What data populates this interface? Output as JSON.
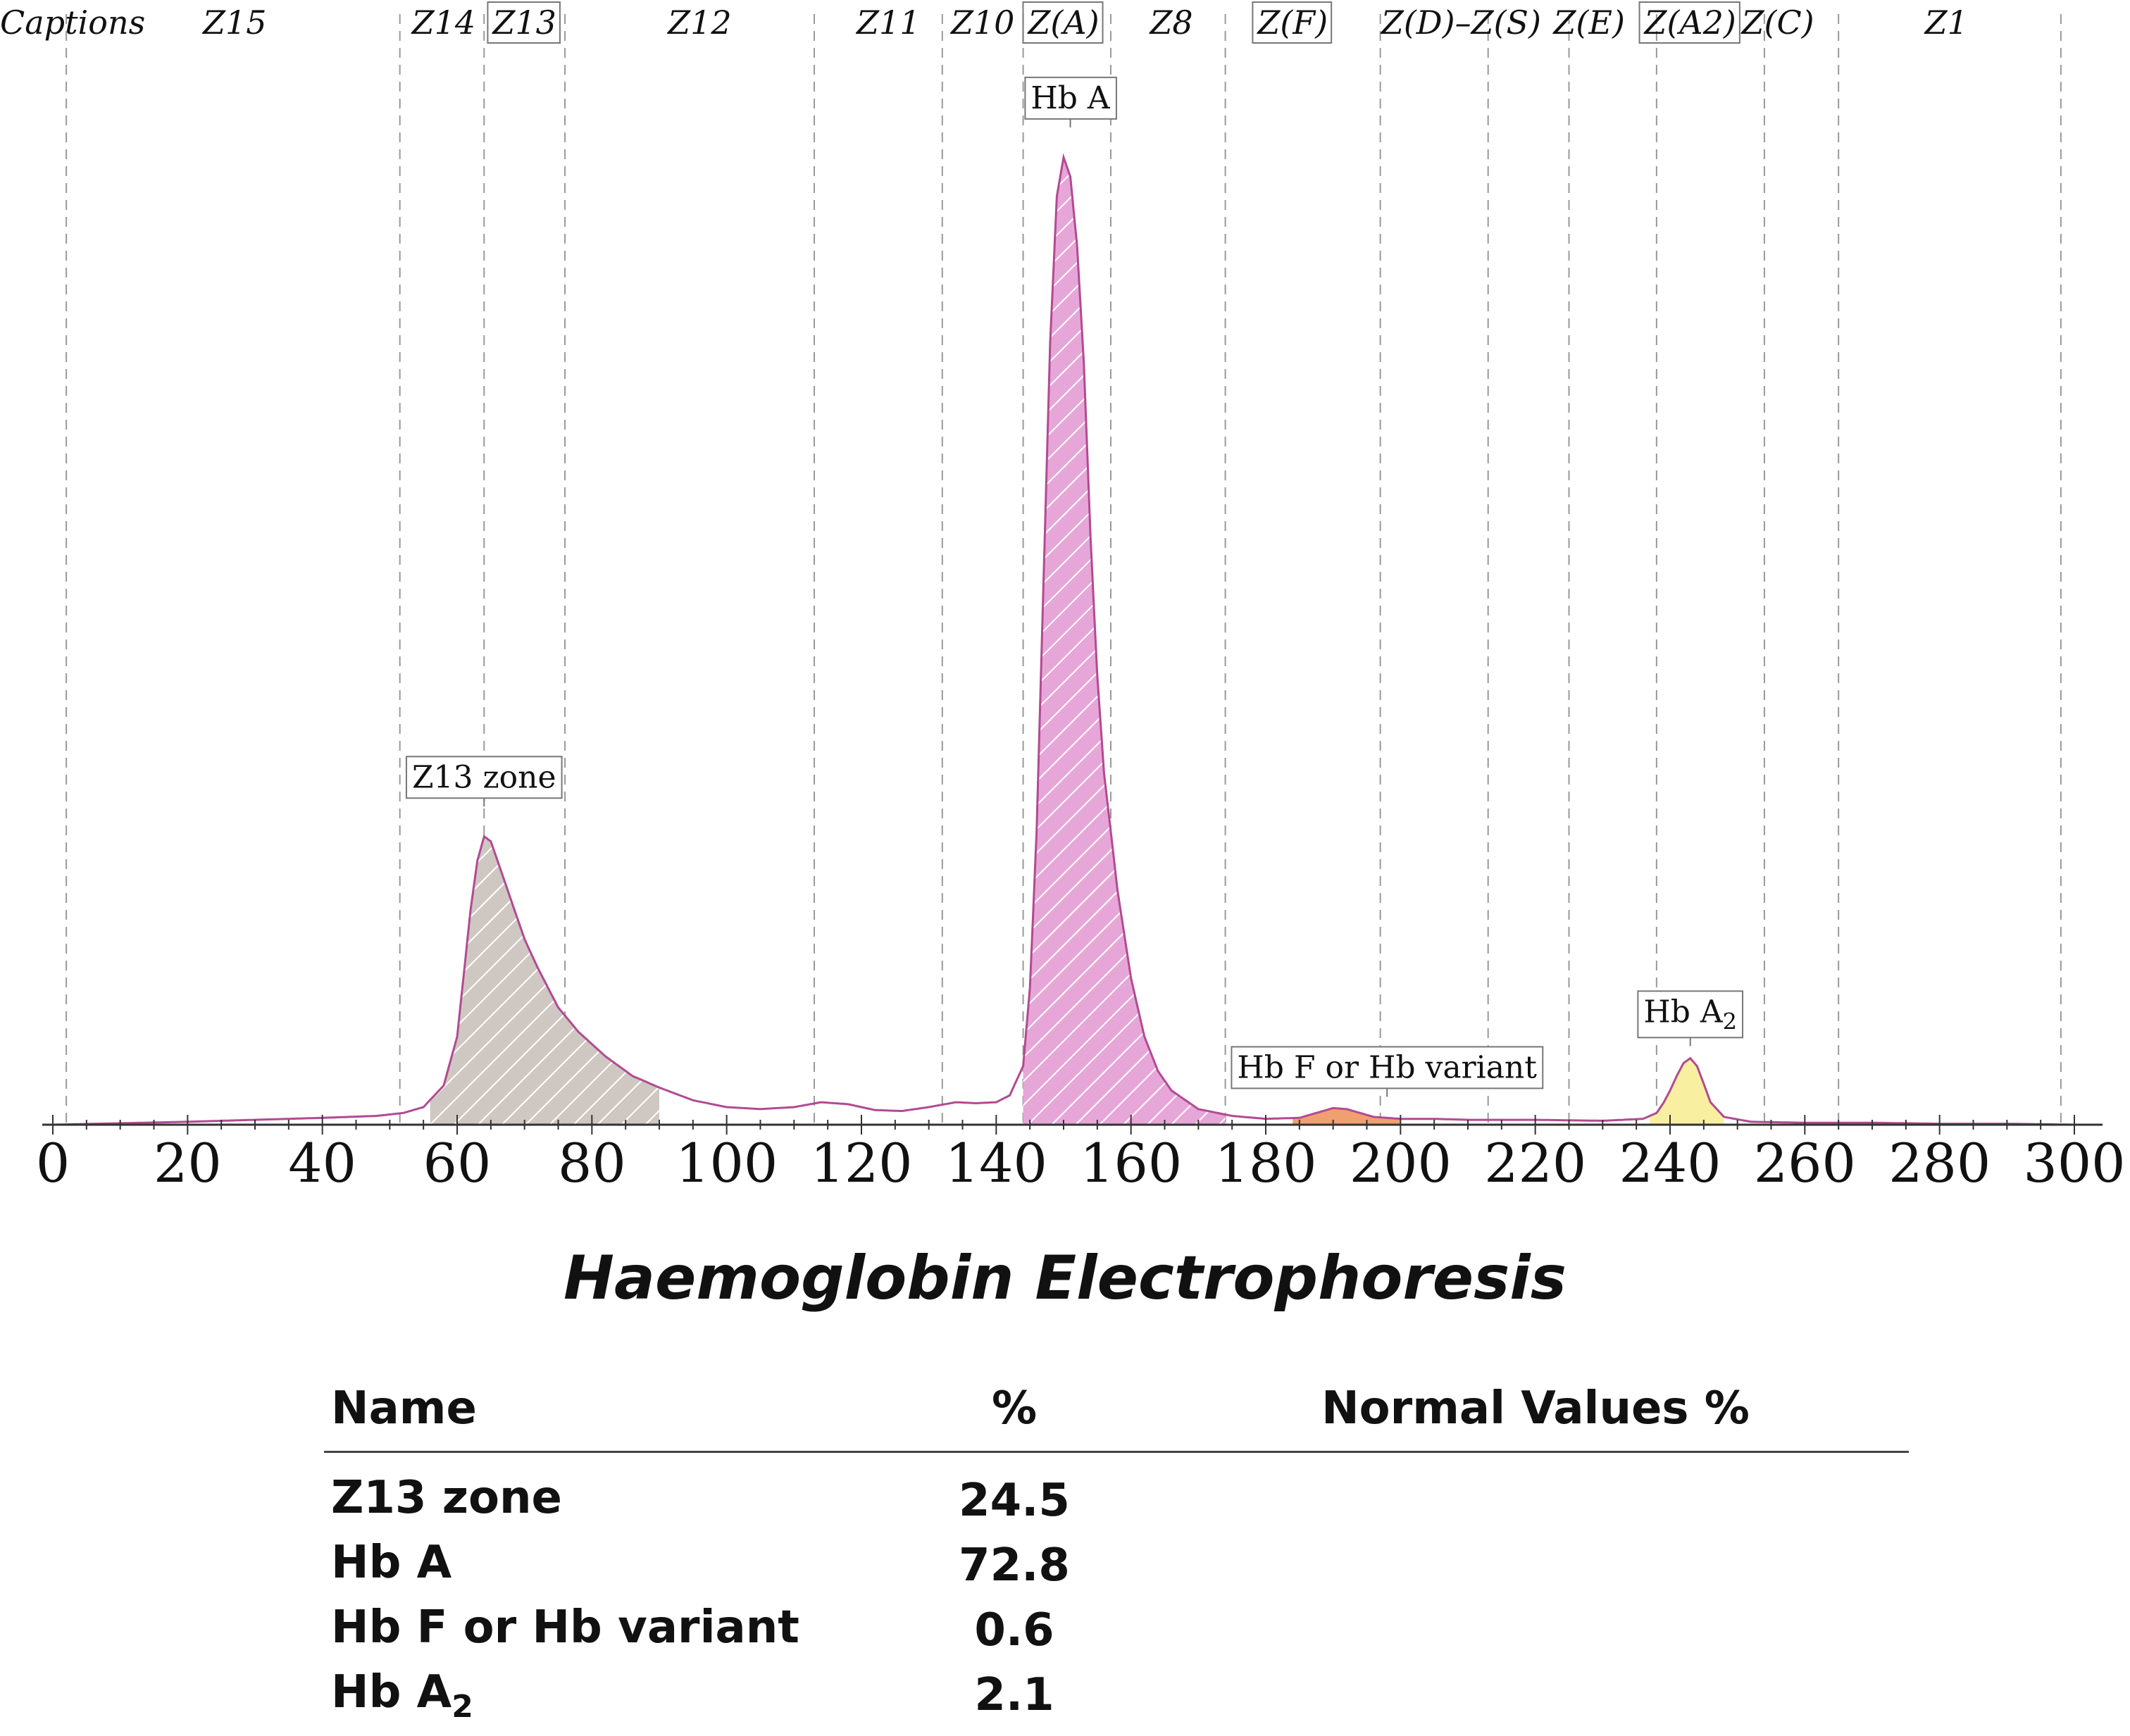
{
  "chart_data": {
    "type": "area",
    "title": "Haemoglobin Electrophoresis",
    "xlim": [
      0,
      300
    ],
    "x_ticks": [
      0,
      20,
      40,
      60,
      80,
      100,
      120,
      140,
      160,
      180,
      200,
      220,
      240,
      260,
      280,
      300
    ],
    "zone_caption": "Captions",
    "zones": [
      {
        "label": "Z15",
        "center": 27,
        "boxed": false
      },
      {
        "label": "Z14",
        "center": 58,
        "boxed": false
      },
      {
        "label": "Z13",
        "center": 70,
        "boxed": true
      },
      {
        "label": "Z12",
        "center": 96,
        "boxed": false
      },
      {
        "label": "Z11",
        "center": 124,
        "boxed": false
      },
      {
        "label": "Z10",
        "center": 138,
        "boxed": false
      },
      {
        "label": "Z(A)",
        "center": 150,
        "boxed": true
      },
      {
        "label": "Z8",
        "center": 166,
        "boxed": false
      },
      {
        "label": "Z(F)",
        "center": 184,
        "boxed": true
      },
      {
        "label": "Z(D)–Z(S)",
        "center": 209,
        "boxed": false
      },
      {
        "label": "Z(E)",
        "center": 228,
        "boxed": false
      },
      {
        "label": "Z(A2)",
        "center": 243,
        "boxed": true
      },
      {
        "label": "Z(C)",
        "center": 256,
        "boxed": false
      },
      {
        "label": "Z1",
        "center": 281,
        "boxed": false
      }
    ],
    "zone_boundaries": [
      2,
      51.5,
      64,
      76,
      113,
      132,
      144,
      157,
      174,
      197,
      213,
      225,
      238,
      254,
      265,
      298
    ],
    "curve": {
      "x": [
        0,
        10,
        20,
        30,
        40,
        48,
        52,
        55,
        58,
        60,
        62,
        63,
        64,
        65,
        66,
        68,
        70,
        72,
        75,
        78,
        82,
        86,
        90,
        95,
        100,
        105,
        110,
        114,
        118,
        122,
        126,
        130,
        134,
        137,
        140,
        142,
        144,
        145,
        146,
        147,
        148,
        149,
        150,
        151,
        152,
        153,
        154,
        155,
        156,
        158,
        160,
        162,
        164,
        166,
        170,
        175,
        180,
        185,
        188,
        190,
        192,
        194,
        196,
        200,
        205,
        210,
        220,
        230,
        236,
        238,
        239,
        240,
        241,
        242,
        243,
        244,
        245,
        246,
        248,
        252,
        260,
        270,
        280,
        290,
        300
      ],
      "y": [
        0.0,
        0.15,
        0.3,
        0.5,
        0.7,
        0.9,
        1.2,
        1.8,
        4.0,
        9.0,
        22.0,
        27.0,
        29.5,
        29.0,
        27.0,
        23.0,
        19.0,
        16.0,
        12.0,
        9.5,
        7.0,
        5.0,
        3.8,
        2.5,
        1.8,
        1.6,
        1.8,
        2.3,
        2.1,
        1.5,
        1.4,
        1.8,
        2.3,
        2.2,
        2.3,
        3.0,
        6.0,
        14.0,
        30.0,
        55.0,
        80.0,
        95.0,
        99.0,
        97.0,
        90.0,
        78.0,
        60.0,
        46.0,
        36.0,
        24.0,
        15.0,
        9.0,
        5.5,
        3.5,
        1.6,
        0.9,
        0.6,
        0.7,
        1.3,
        1.7,
        1.6,
        1.2,
        0.8,
        0.6,
        0.6,
        0.5,
        0.5,
        0.4,
        0.6,
        1.2,
        2.2,
        3.5,
        5.0,
        6.3,
        6.8,
        6.0,
        4.2,
        2.3,
        0.8,
        0.3,
        0.2,
        0.2,
        0.1,
        0.1,
        0.0
      ],
      "ylim": [
        0,
        105
      ]
    },
    "fractions": [
      {
        "name": "Z13 zone",
        "x_start": 56,
        "x_end": 90,
        "x_peak": 64,
        "fill": "#cfc7c2",
        "color": "#a0989a",
        "hatched": true
      },
      {
        "name": "Hb A",
        "x_start": 144,
        "x_end": 174,
        "x_peak": 150,
        "fill": "#e7a6d8",
        "color": "#c048a8",
        "hatched": true
      },
      {
        "name": "Hb F or Hb variant",
        "x_start": 184,
        "x_end": 200,
        "x_peak": 191,
        "fill": "#f0a070",
        "color": "#e08040",
        "hatched": false
      },
      {
        "name": "Hb A2",
        "x_start": 237,
        "x_end": 248,
        "x_peak": 243,
        "fill": "#f8f0a0",
        "color": "#d8c860",
        "hatched": false
      }
    ],
    "peak_labels": [
      {
        "text": "Z13 zone",
        "sub": "",
        "x_center": 64,
        "y": 34.5
      },
      {
        "text": "Hb A",
        "sub": "",
        "x_center": 151,
        "y": 104
      },
      {
        "text": "Hb F or Hb variant",
        "sub": "",
        "x_center": 198,
        "y": 4.8
      },
      {
        "text": "Hb A",
        "sub": "2",
        "x_center": 243,
        "y": 10.5
      }
    ],
    "colors": {
      "curve": "#b24a92",
      "axis": "#333333",
      "gridline": "#999999"
    }
  },
  "results_table": {
    "headers": {
      "name": "Name",
      "percent": "%",
      "normal": "Normal Values %"
    },
    "rows": [
      {
        "name": "Z13 zone",
        "sub": "",
        "percent": "24.5",
        "normal": ""
      },
      {
        "name": "Hb A",
        "sub": "",
        "percent": "72.8",
        "normal": ""
      },
      {
        "name": "Hb F or Hb variant",
        "sub": "",
        "percent": "0.6",
        "normal": ""
      },
      {
        "name": "Hb A",
        "sub": "2",
        "percent": "2.1",
        "normal": ""
      }
    ]
  }
}
